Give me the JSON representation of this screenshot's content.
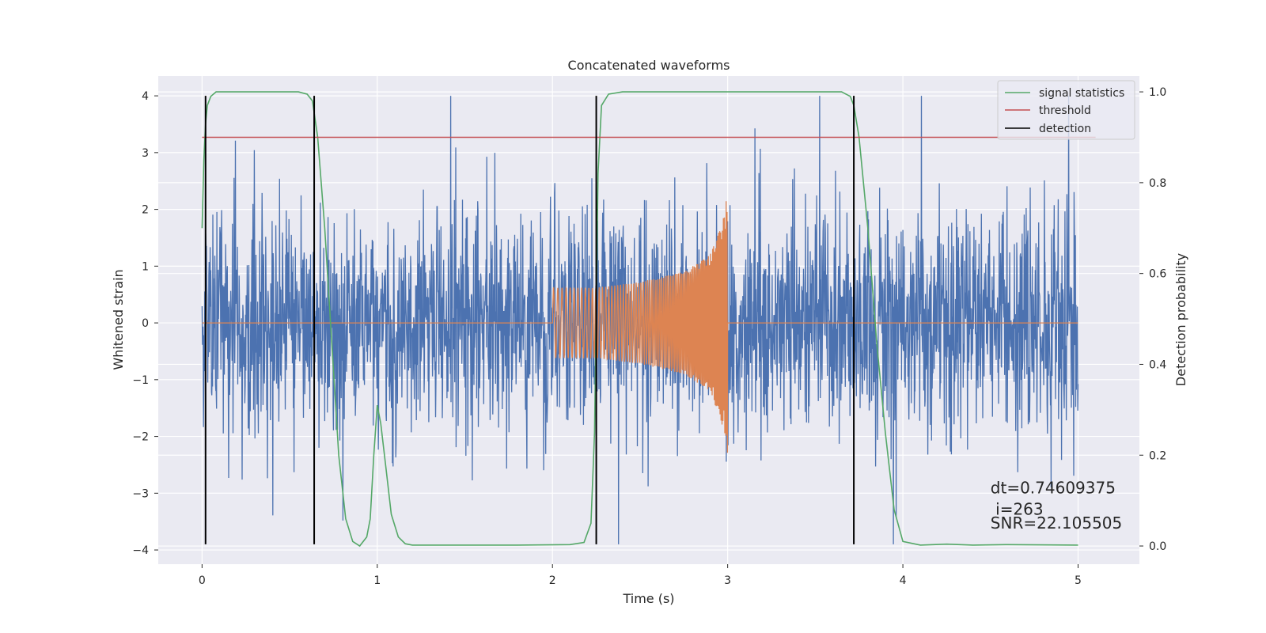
{
  "chart_data": {
    "type": "line",
    "title": "Concatenated waveforms",
    "xlabel": "Time (s)",
    "ylabel": "Whitened strain",
    "y2label": "Detection probability",
    "xlim": [
      -0.25,
      5.35
    ],
    "ylim": [
      -4.25,
      4.35
    ],
    "y2lim": [
      -0.04,
      1.035
    ],
    "xticks": [
      0,
      1,
      2,
      3,
      4,
      5
    ],
    "yticks": [
      -4,
      -3,
      -2,
      -1,
      0,
      1,
      2,
      3,
      4
    ],
    "y2ticks": [
      0.0,
      0.2,
      0.4,
      0.6,
      0.8,
      1.0
    ],
    "y2ticklabels": [
      "0.0",
      "0.2",
      "0.4",
      "0.6",
      "0.8",
      "1.0"
    ],
    "grid": true,
    "legend_position": "upper right",
    "noise": {
      "color": "#4c72b0",
      "x_range": [
        0,
        5
      ],
      "typical_amplitude": 1.2,
      "peak_amplitude": 4.0,
      "axis": "left"
    },
    "injected_signal": {
      "color": "#dd8452",
      "axis": "left",
      "x": [
        0,
        2.0,
        2.0,
        2.25,
        2.5,
        2.75,
        2.9,
        2.98,
        3.0,
        3.0,
        5.0
      ],
      "envelope": [
        0,
        0,
        0.62,
        0.62,
        0.72,
        0.9,
        1.2,
        1.9,
        2.35,
        0,
        0
      ]
    },
    "series": [
      {
        "name": "signal statistics",
        "color": "#55a868",
        "axis": "right",
        "x": [
          0,
          0.01,
          0.02,
          0.03,
          0.05,
          0.08,
          0.12,
          0.2,
          0.4,
          0.55,
          0.6,
          0.63,
          0.66,
          0.7,
          0.74,
          0.78,
          0.82,
          0.86,
          0.9,
          0.94,
          0.96,
          0.98,
          1.0,
          1.02,
          1.05,
          1.08,
          1.12,
          1.16,
          1.2,
          1.4,
          1.8,
          2.1,
          2.18,
          2.22,
          2.24,
          2.26,
          2.28,
          2.32,
          2.4,
          2.6,
          3.0,
          3.5,
          3.65,
          3.7,
          3.72,
          3.75,
          3.8,
          3.85,
          3.9,
          3.95,
          4.0,
          4.1,
          4.25,
          4.4,
          4.6,
          5.0
        ],
        "y": [
          0.7,
          0.85,
          0.93,
          0.97,
          0.99,
          1.0,
          1.0,
          1.0,
          1.0,
          1.0,
          0.995,
          0.98,
          0.9,
          0.7,
          0.45,
          0.2,
          0.06,
          0.01,
          0.0,
          0.02,
          0.06,
          0.2,
          0.31,
          0.27,
          0.17,
          0.07,
          0.02,
          0.005,
          0.002,
          0.002,
          0.002,
          0.003,
          0.008,
          0.05,
          0.25,
          0.82,
          0.97,
          0.995,
          1.0,
          1.0,
          1.0,
          1.0,
          1.0,
          0.99,
          0.97,
          0.9,
          0.7,
          0.45,
          0.25,
          0.08,
          0.01,
          0.002,
          0.004,
          0.002,
          0.003,
          0.002
        ]
      },
      {
        "name": "threshold",
        "color": "#c44e52",
        "axis": "right",
        "x": [
          0,
          5.1
        ],
        "y": [
          0.9,
          0.9
        ]
      },
      {
        "name": "detection",
        "color": "#000000",
        "axis": "left",
        "x": [
          0.02,
          0.64,
          2.25,
          3.72
        ],
        "ymin": -3.9,
        "ymax": 4.0
      }
    ],
    "annotations": [
      {
        "text": "dt=0.74609375",
        "x": 4.5,
        "y": -3.0
      },
      {
        "text": " i=263",
        "x": 4.5,
        "y": -3.38
      },
      {
        "text": "SNR=22.105505",
        "x": 4.5,
        "y": -3.62
      }
    ]
  }
}
